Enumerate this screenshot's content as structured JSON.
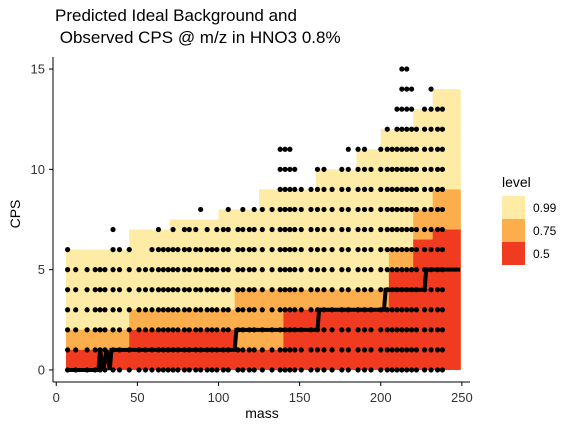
{
  "chart_data": {
    "type": "scatter",
    "title_line1": "Predicted Ideal Background and",
    "title_line2": " Observed CPS @ m/z in HNO3 0.8%",
    "xlabel": "mass",
    "ylabel": "CPS",
    "xlim": [
      -2,
      255
    ],
    "ylim": [
      -0.6,
      15.6
    ],
    "x_ticks": [
      0,
      50,
      100,
      150,
      200,
      250
    ],
    "y_ticks": [
      0,
      5,
      10,
      15
    ],
    "grid": false,
    "legend": {
      "title": "level",
      "placement": "right",
      "items": [
        {
          "label": "0.99",
          "color": "#FDEBA6"
        },
        {
          "label": "0.75",
          "color": "#FBAE4B"
        },
        {
          "label": "0.5",
          "color": "#F03B20"
        }
      ]
    },
    "bands": [
      {
        "level": "0.99",
        "color": "#FDEBA6",
        "segments": [
          [
            6,
            25,
            0,
            6
          ],
          [
            25,
            45,
            0,
            6
          ],
          [
            45,
            70,
            0,
            7
          ],
          [
            70,
            100,
            0,
            7.5
          ],
          [
            100,
            125,
            0,
            8
          ],
          [
            125,
            160,
            0,
            9
          ],
          [
            160,
            185,
            0,
            10
          ],
          [
            185,
            200,
            0,
            11
          ],
          [
            200,
            220,
            0,
            12
          ],
          [
            220,
            232,
            0,
            13
          ],
          [
            232,
            249,
            0,
            14
          ]
        ]
      },
      {
        "level": "0.75",
        "color": "#FBAE4B",
        "segments": [
          [
            6,
            45,
            0,
            2
          ],
          [
            45,
            110,
            0,
            3
          ],
          [
            110,
            160,
            0,
            4
          ],
          [
            160,
            205,
            0,
            4
          ],
          [
            205,
            220,
            0,
            6
          ],
          [
            220,
            232,
            0,
            8
          ],
          [
            232,
            249,
            0,
            9
          ]
        ]
      },
      {
        "level": "0.5",
        "color": "#F03B20",
        "segments": [
          [
            6,
            25,
            0,
            1
          ],
          [
            25,
            45,
            0,
            1
          ],
          [
            45,
            110,
            0,
            2
          ],
          [
            110,
            140,
            0,
            1
          ],
          [
            140,
            160,
            0,
            3
          ],
          [
            160,
            205,
            0,
            3
          ],
          [
            205,
            220,
            0,
            5
          ],
          [
            220,
            232,
            0,
            6.5
          ],
          [
            232,
            249,
            0,
            7
          ]
        ]
      }
    ],
    "median_line": [
      [
        6,
        0
      ],
      [
        26,
        0
      ],
      [
        27,
        1
      ],
      [
        29,
        0
      ],
      [
        31,
        1
      ],
      [
        33,
        0
      ],
      [
        34,
        1
      ],
      [
        110,
        1
      ],
      [
        111,
        2
      ],
      [
        161,
        2
      ],
      [
        162,
        3
      ],
      [
        202,
        3
      ],
      [
        203,
        4
      ],
      [
        227,
        4
      ],
      [
        228,
        5
      ],
      [
        249,
        5
      ]
    ],
    "point_columns": [
      {
        "x": 7,
        "ys": [
          0,
          1,
          2,
          3,
          4,
          5,
          6
        ]
      },
      {
        "x": 12,
        "ys": [
          0,
          1,
          2,
          3,
          4,
          5
        ]
      },
      {
        "x": 19,
        "ys": [
          0,
          1,
          2,
          3,
          4,
          5
        ]
      },
      {
        "x": 24,
        "ys": [
          0,
          1,
          2,
          3,
          4,
          5
        ]
      },
      {
        "x": 27,
        "ys": [
          0,
          1,
          2,
          3,
          4,
          5
        ]
      },
      {
        "x": 30,
        "ys": [
          0,
          1,
          2,
          3,
          4,
          5
        ]
      },
      {
        "x": 35,
        "ys": [
          0,
          1,
          2,
          3,
          4,
          5,
          6,
          7
        ]
      },
      {
        "x": 39,
        "ys": [
          0,
          1,
          2,
          3,
          4,
          5,
          6
        ]
      },
      {
        "x": 45,
        "ys": [
          0,
          1,
          2,
          3,
          4,
          5,
          6
        ]
      },
      {
        "x": 51,
        "ys": [
          0,
          1,
          2,
          3,
          4,
          5
        ]
      },
      {
        "x": 55,
        "ys": [
          0,
          1,
          2,
          3,
          4,
          5
        ]
      },
      {
        "x": 59,
        "ys": [
          0,
          1,
          2,
          3,
          4,
          5,
          6
        ]
      },
      {
        "x": 63,
        "ys": [
          0,
          1,
          2,
          3,
          4,
          5,
          6,
          7
        ]
      },
      {
        "x": 66,
        "ys": [
          0,
          1,
          2,
          3,
          4,
          5,
          6
        ]
      },
      {
        "x": 69,
        "ys": [
          0,
          1,
          2,
          3,
          4,
          5,
          6
        ]
      },
      {
        "x": 72,
        "ys": [
          0,
          1,
          2,
          3,
          4,
          5,
          6,
          7
        ]
      },
      {
        "x": 75,
        "ys": [
          0,
          1,
          2,
          3,
          4,
          5,
          6
        ]
      },
      {
        "x": 79,
        "ys": [
          0,
          1,
          2,
          3,
          4,
          5,
          6,
          7
        ]
      },
      {
        "x": 82,
        "ys": [
          0,
          1,
          2,
          3,
          4,
          5,
          6,
          7
        ]
      },
      {
        "x": 86,
        "ys": [
          0,
          1,
          2,
          3,
          4,
          5,
          6,
          7
        ]
      },
      {
        "x": 89,
        "ys": [
          0,
          1,
          2,
          3,
          4,
          5,
          6,
          8
        ]
      },
      {
        "x": 93,
        "ys": [
          0,
          1,
          2,
          3,
          4,
          5,
          6,
          7
        ]
      },
      {
        "x": 96,
        "ys": [
          0,
          1,
          2,
          3,
          4,
          5,
          6
        ]
      },
      {
        "x": 99,
        "ys": [
          0,
          1,
          2,
          3,
          4,
          5,
          6,
          7
        ]
      },
      {
        "x": 103,
        "ys": [
          0,
          1,
          2,
          3,
          4,
          5,
          6,
          7
        ]
      },
      {
        "x": 106,
        "ys": [
          0,
          1,
          2,
          3,
          4,
          5,
          6,
          7,
          8
        ]
      },
      {
        "x": 112,
        "ys": [
          0,
          1,
          2,
          3,
          4,
          5,
          6,
          7
        ]
      },
      {
        "x": 115,
        "ys": [
          0,
          1,
          2,
          3,
          4,
          5,
          6,
          7,
          8
        ]
      },
      {
        "x": 119,
        "ys": [
          0,
          1,
          2,
          3,
          4,
          5,
          6,
          7
        ]
      },
      {
        "x": 122,
        "ys": [
          0,
          1,
          2,
          3,
          4,
          5,
          6,
          7,
          8
        ]
      },
      {
        "x": 127,
        "ys": [
          0,
          1,
          2,
          3,
          4,
          5,
          6,
          7,
          8
        ]
      },
      {
        "x": 133,
        "ys": [
          0,
          1,
          2,
          3,
          4,
          5,
          6,
          7,
          8
        ]
      },
      {
        "x": 138,
        "ys": [
          0,
          1,
          2,
          3,
          4,
          5,
          6,
          7,
          8,
          9,
          10,
          11
        ]
      },
      {
        "x": 141,
        "ys": [
          0,
          1,
          2,
          3,
          4,
          5,
          6,
          7,
          8,
          9,
          10,
          11
        ]
      },
      {
        "x": 144,
        "ys": [
          0,
          1,
          2,
          3,
          4,
          5,
          6,
          7,
          8,
          9,
          10,
          11
        ]
      },
      {
        "x": 147,
        "ys": [
          0,
          1,
          2,
          3,
          4,
          5,
          6,
          7,
          8,
          9,
          10
        ]
      },
      {
        "x": 151,
        "ys": [
          0,
          1,
          2,
          3,
          4,
          5,
          6,
          7,
          8,
          9
        ]
      },
      {
        "x": 157,
        "ys": [
          0,
          1,
          2,
          3,
          4,
          5,
          6,
          7,
          8,
          9
        ]
      },
      {
        "x": 161,
        "ys": [
          0,
          1,
          2,
          3,
          4,
          5,
          6,
          7,
          8,
          9,
          10
        ]
      },
      {
        "x": 165,
        "ys": [
          0,
          1,
          2,
          3,
          4,
          5,
          6,
          7,
          8,
          9,
          10
        ]
      },
      {
        "x": 170,
        "ys": [
          0,
          1,
          2,
          3,
          4,
          5,
          6,
          7,
          8,
          9
        ]
      },
      {
        "x": 176,
        "ys": [
          0,
          1,
          2,
          3,
          4,
          5,
          6,
          7,
          8,
          9,
          10
        ]
      },
      {
        "x": 180,
        "ys": [
          0,
          1,
          2,
          3,
          4,
          5,
          6,
          7,
          8,
          9,
          10,
          11
        ]
      },
      {
        "x": 186,
        "ys": [
          0,
          1,
          2,
          3,
          4,
          5,
          6,
          7,
          8,
          9,
          10,
          11
        ]
      },
      {
        "x": 190,
        "ys": [
          0,
          1,
          2,
          3,
          4,
          5,
          6,
          7,
          8,
          9,
          10,
          11
        ]
      },
      {
        "x": 194,
        "ys": [
          0,
          1,
          2,
          3,
          4,
          5,
          6,
          7,
          8,
          9,
          10
        ]
      },
      {
        "x": 200,
        "ys": [
          0,
          1,
          2,
          3,
          4,
          5,
          6,
          7,
          8,
          9,
          10,
          11
        ]
      },
      {
        "x": 204,
        "ys": [
          0,
          1,
          2,
          3,
          4,
          5,
          6,
          7,
          8,
          9,
          10,
          11,
          12
        ]
      },
      {
        "x": 207,
        "ys": [
          0,
          1,
          2,
          3,
          4,
          5,
          6,
          7,
          8,
          9,
          10,
          11
        ]
      },
      {
        "x": 210,
        "ys": [
          0,
          1,
          2,
          3,
          4,
          5,
          6,
          7,
          8,
          9,
          10,
          11,
          12,
          13
        ]
      },
      {
        "x": 213,
        "ys": [
          0,
          1,
          2,
          3,
          4,
          5,
          6,
          7,
          8,
          9,
          10,
          11,
          12,
          13,
          14,
          15
        ]
      },
      {
        "x": 216,
        "ys": [
          0,
          1,
          2,
          3,
          4,
          5,
          6,
          7,
          8,
          9,
          10,
          11,
          12,
          13,
          14,
          15
        ]
      },
      {
        "x": 219,
        "ys": [
          0,
          1,
          2,
          3,
          4,
          5,
          6,
          7,
          8,
          9,
          10,
          11,
          12,
          13,
          14
        ]
      },
      {
        "x": 222,
        "ys": [
          0,
          1,
          2,
          3,
          4,
          5,
          6,
          7,
          8,
          9,
          10,
          11,
          12
        ]
      },
      {
        "x": 227,
        "ys": [
          0,
          1,
          2,
          3,
          4,
          5,
          6,
          7,
          8,
          9,
          10,
          11,
          12,
          13
        ]
      },
      {
        "x": 231,
        "ys": [
          0,
          1,
          2,
          3,
          4,
          5,
          6,
          7,
          8,
          9,
          10,
          11,
          12,
          13,
          14
        ]
      },
      {
        "x": 235,
        "ys": [
          0,
          1,
          2,
          3,
          4,
          5,
          6,
          7,
          8,
          9,
          10,
          11,
          12,
          13
        ]
      },
      {
        "x": 238,
        "ys": [
          0,
          1,
          2,
          3,
          4,
          5,
          6,
          7,
          8,
          9,
          10,
          11,
          12,
          13
        ]
      }
    ]
  }
}
